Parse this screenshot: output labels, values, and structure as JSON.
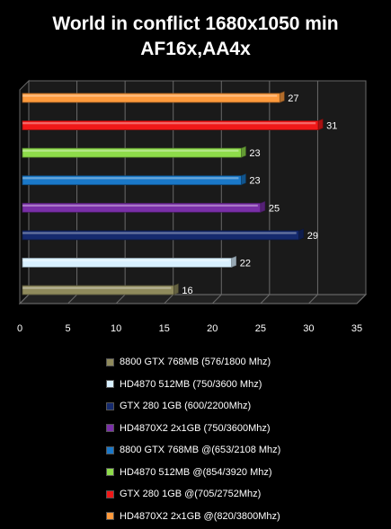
{
  "chart_data": {
    "type": "bar",
    "orientation": "horizontal",
    "title_lines": [
      "World in conflict 1680x1050 min",
      "AF16x,AA4x"
    ],
    "xlim": [
      0,
      35
    ],
    "xticks": [
      "0",
      "5",
      "10",
      "15",
      "20",
      "25",
      "30",
      "35"
    ],
    "grid": true,
    "legend_position": "bottom",
    "series": [
      {
        "name": "8800 GTX 768MB (576/1800 Mhz)",
        "value": 16,
        "label": "16",
        "color": "#8f8a5c"
      },
      {
        "name": "HD4870 512MB (750/3600 Mhz)",
        "value": 22,
        "label": "22",
        "color": "#d8f0ff"
      },
      {
        "name": "GTX 280 1GB (600/2200Mhz)",
        "value": 29,
        "label": "29",
        "color": "#152a6e"
      },
      {
        "name": "HD4870X2 2x1GB (750/3600Mhz)",
        "value": 25,
        "label": "25",
        "color": "#7a2fa8"
      },
      {
        "name": "8800 GTX 768MB @(653/2108 Mhz)",
        "value": 23,
        "label": "23",
        "color": "#1a78c8"
      },
      {
        "name": "HD4870 512MB @(854/3920 Mhz)",
        "value": 23,
        "label": "23",
        "color": "#8edc4a"
      },
      {
        "name": "GTX 280 1GB @(705/2752Mhz)",
        "value": 31,
        "label": "31",
        "color": "#f01818"
      },
      {
        "name": "HD4870X2 2x1GB @(820/3800Mhz)",
        "value": 27,
        "label": "27",
        "color": "#ff9a3c"
      }
    ]
  }
}
